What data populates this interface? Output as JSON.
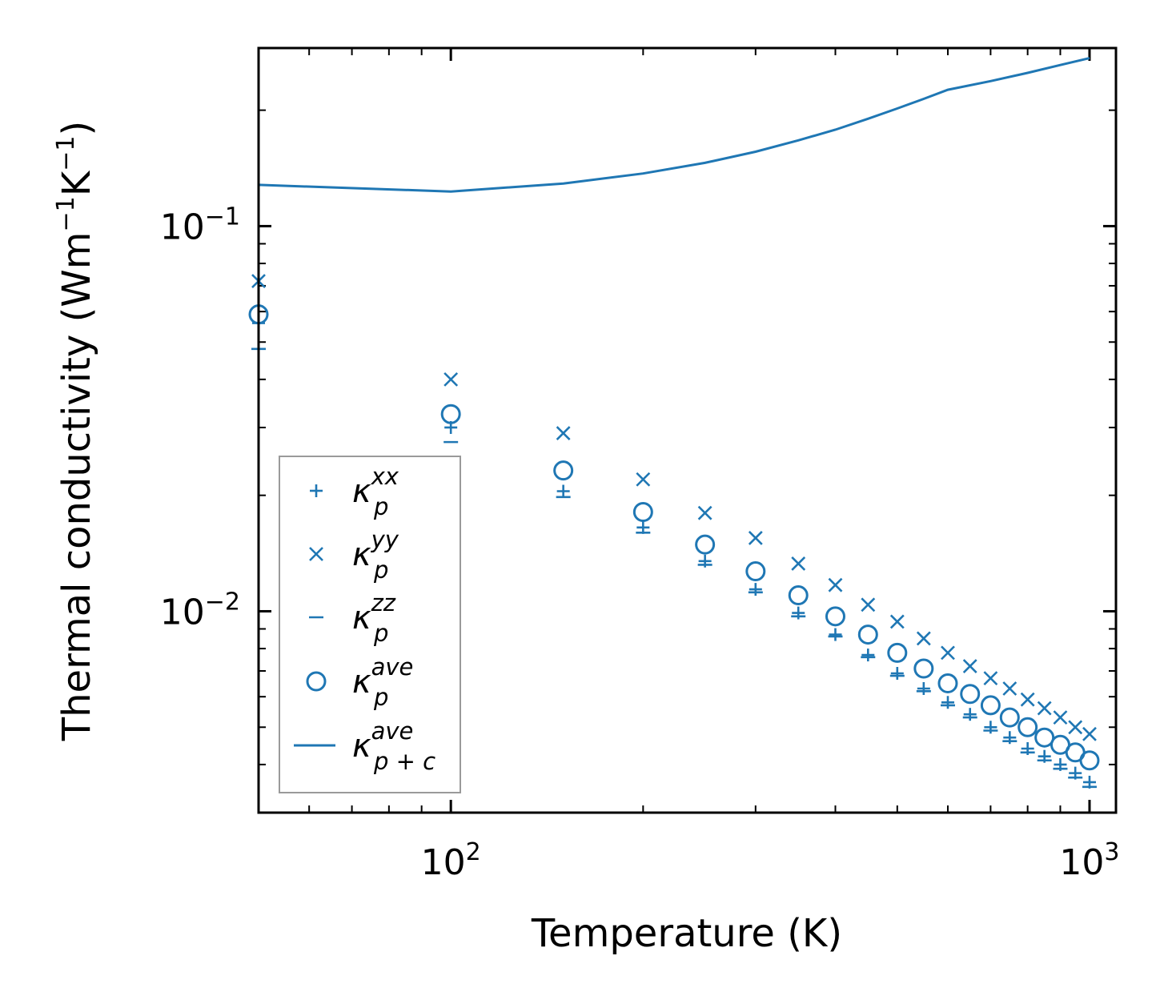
{
  "chart_data": {
    "type": "scatter",
    "xscale": "log",
    "yscale": "log",
    "xlim": [
      50,
      1100
    ],
    "ylim": [
      0.003,
      0.29
    ],
    "xlabel": "Temperature (K)",
    "ylabel": {
      "prefix": "Thermal conductivity (Wm",
      "exp1": "−1",
      "mid": "K",
      "exp2": "−1",
      "suffix": ")"
    },
    "x_tick_labels": [
      {
        "value": 100,
        "base": "10",
        "exp": "2"
      },
      {
        "value": 1000,
        "base": "10",
        "exp": "3"
      }
    ],
    "y_tick_labels": [
      {
        "value": 0.01,
        "base": "10",
        "exp": "−2"
      },
      {
        "value": 0.1,
        "base": "10",
        "exp": "−1"
      }
    ],
    "x": [
      50,
      100,
      150,
      200,
      250,
      300,
      350,
      400,
      450,
      500,
      550,
      600,
      650,
      700,
      750,
      800,
      850,
      900,
      950,
      1000
    ],
    "series": [
      {
        "name": "kappa_p_xx",
        "label_base": "κ",
        "label_sub": "p",
        "label_sup": "xx",
        "marker": "plus",
        "values": [
          0.056,
          0.03,
          0.0205,
          0.0165,
          0.0135,
          0.0114,
          0.0099,
          0.0087,
          0.0077,
          0.0069,
          0.0063,
          0.0058,
          0.0054,
          0.005,
          0.0047,
          0.0044,
          0.0042,
          0.004,
          0.0038,
          0.0036
        ]
      },
      {
        "name": "kappa_p_yy",
        "label_base": "κ",
        "label_sub": "p",
        "label_sup": "yy",
        "marker": "x",
        "values": [
          0.072,
          0.04,
          0.029,
          0.022,
          0.018,
          0.0155,
          0.0133,
          0.0117,
          0.0104,
          0.0094,
          0.0085,
          0.0078,
          0.0072,
          0.0067,
          0.0063,
          0.0059,
          0.0056,
          0.0053,
          0.005,
          0.0048
        ]
      },
      {
        "name": "kappa_p_zz",
        "label_base": "κ",
        "label_sub": "p",
        "label_sup": "zz",
        "marker": "dash",
        "values": [
          0.048,
          0.0275,
          0.0198,
          0.016,
          0.0132,
          0.0112,
          0.0097,
          0.0086,
          0.0076,
          0.0068,
          0.0062,
          0.0057,
          0.0053,
          0.0049,
          0.0046,
          0.0043,
          0.0041,
          0.0039,
          0.0037,
          0.0035
        ]
      },
      {
        "name": "kappa_p_ave",
        "label_base": "κ",
        "label_sub": "p",
        "label_sup": "ave",
        "marker": "circle",
        "values": [
          0.059,
          0.0325,
          0.0232,
          0.0181,
          0.0149,
          0.0127,
          0.011,
          0.0097,
          0.0087,
          0.0078,
          0.0071,
          0.0065,
          0.0061,
          0.0057,
          0.0053,
          0.005,
          0.0047,
          0.0045,
          0.0043,
          0.0041
        ]
      },
      {
        "name": "kappa_pc_ave",
        "label_base": "κ",
        "label_sub": "p + c",
        "label_sup": "ave",
        "marker": "line",
        "values": [
          0.128,
          0.123,
          0.129,
          0.137,
          0.146,
          0.156,
          0.167,
          0.178,
          0.19,
          0.202,
          0.214,
          0.226,
          0.238,
          0.25,
          0.262,
          0.273
        ]
      }
    ],
    "line_x": [
      50,
      100,
      150,
      200,
      250,
      300,
      350,
      400,
      450,
      500,
      550,
      600,
      700,
      800,
      900,
      1000
    ],
    "color": "#1f77b4",
    "legend_position": "lower-left"
  }
}
